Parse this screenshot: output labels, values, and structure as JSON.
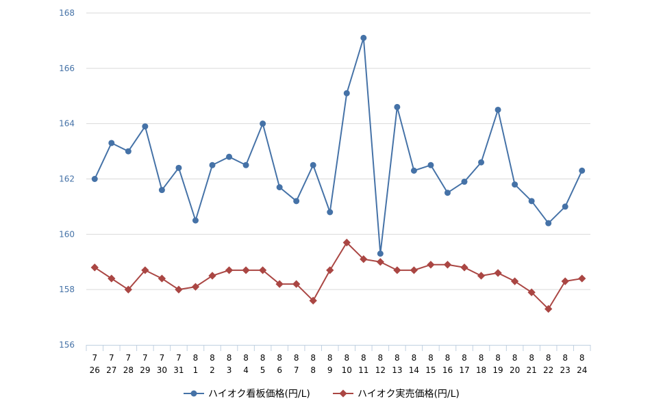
{
  "chart_data": {
    "type": "line",
    "title": "",
    "xlabel": "",
    "ylabel": "",
    "ylim": [
      156,
      168
    ],
    "yticks": [
      156,
      158,
      160,
      162,
      164,
      166,
      168
    ],
    "grid": true,
    "legend_position": "bottom",
    "categories": [
      {
        "month": "7",
        "day": "26"
      },
      {
        "month": "7",
        "day": "27"
      },
      {
        "month": "7",
        "day": "28"
      },
      {
        "month": "7",
        "day": "29"
      },
      {
        "month": "7",
        "day": "30"
      },
      {
        "month": "7",
        "day": "31"
      },
      {
        "month": "8",
        "day": "1"
      },
      {
        "month": "8",
        "day": "2"
      },
      {
        "month": "8",
        "day": "3"
      },
      {
        "month": "8",
        "day": "4"
      },
      {
        "month": "8",
        "day": "5"
      },
      {
        "month": "8",
        "day": "6"
      },
      {
        "month": "8",
        "day": "7"
      },
      {
        "month": "8",
        "day": "8"
      },
      {
        "month": "8",
        "day": "9"
      },
      {
        "month": "8",
        "day": "10"
      },
      {
        "month": "8",
        "day": "11"
      },
      {
        "month": "8",
        "day": "12"
      },
      {
        "month": "8",
        "day": "13"
      },
      {
        "month": "8",
        "day": "14"
      },
      {
        "month": "8",
        "day": "15"
      },
      {
        "month": "8",
        "day": "16"
      },
      {
        "month": "8",
        "day": "17"
      },
      {
        "month": "8",
        "day": "18"
      },
      {
        "month": "8",
        "day": "19"
      },
      {
        "month": "8",
        "day": "20"
      },
      {
        "month": "8",
        "day": "21"
      },
      {
        "month": "8",
        "day": "22"
      },
      {
        "month": "8",
        "day": "23"
      },
      {
        "month": "8",
        "day": "24"
      }
    ],
    "series": [
      {
        "name": "ハイオク看板価格(円/L)",
        "color": "#4572a7",
        "marker": "circle",
        "values": [
          162.0,
          163.3,
          163.0,
          163.9,
          161.6,
          162.4,
          160.5,
          162.5,
          162.8,
          162.5,
          164.0,
          161.7,
          161.2,
          162.5,
          160.8,
          165.1,
          167.1,
          159.3,
          164.6,
          162.3,
          162.5,
          161.5,
          161.9,
          162.6,
          164.5,
          161.8,
          161.2,
          160.4,
          161.0,
          162.3
        ]
      },
      {
        "name": "ハイオク実売価格(円/L)",
        "color": "#aa4643",
        "marker": "diamond",
        "values": [
          158.8,
          158.4,
          158.0,
          158.7,
          158.4,
          158.0,
          158.1,
          158.5,
          158.7,
          158.7,
          158.7,
          158.2,
          158.2,
          157.6,
          158.7,
          159.7,
          159.1,
          159.0,
          158.7,
          158.7,
          158.9,
          158.9,
          158.8,
          158.5,
          158.6,
          158.3,
          157.9,
          157.3,
          158.3,
          158.4
        ]
      }
    ]
  }
}
